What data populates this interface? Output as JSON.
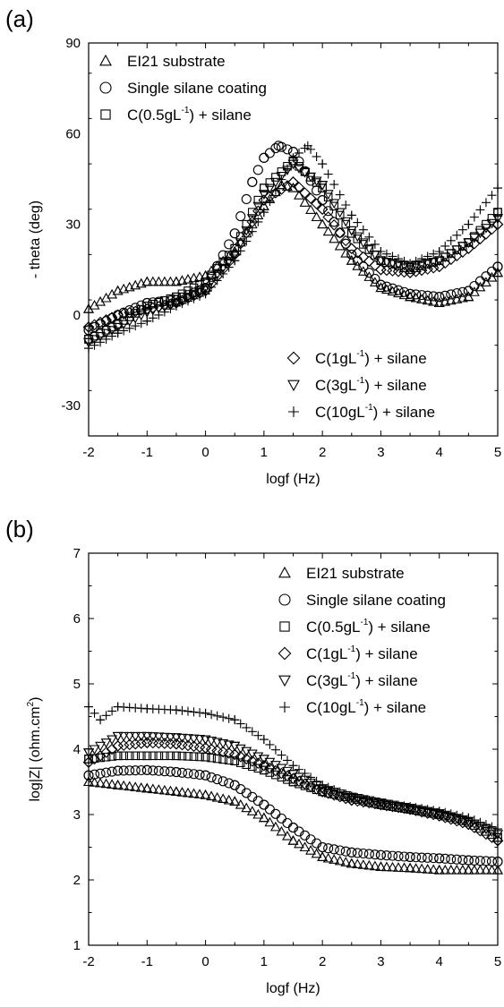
{
  "chart_data": [
    {
      "panel": "(a)",
      "type": "scatter",
      "xlabel": "logf (Hz)",
      "ylabel": "- theta (deg)",
      "xlim": [
        -2,
        5
      ],
      "ylim": [
        -40,
        90
      ],
      "xticks": [
        "-2",
        "-1",
        "0",
        "1",
        "2",
        "3",
        "4",
        "5"
      ],
      "yticks": [
        "-30",
        "0",
        "30",
        "60",
        "90"
      ],
      "legend_groups": [
        {
          "position": "top-left",
          "entries": [
            {
              "marker": "triangle",
              "pre": "EI21 substrate",
              "sup": "",
              "post": ""
            },
            {
              "marker": "circle",
              "pre": "Single silane coating",
              "sup": "",
              "post": ""
            },
            {
              "marker": "square",
              "pre": "C(0.5gL",
              "sup": "-1",
              "post": ") + silane"
            }
          ]
        },
        {
          "position": "bottom-right",
          "entries": [
            {
              "marker": "diamond",
              "pre": "C(1gL",
              "sup": "-1",
              "post": ") + silane"
            },
            {
              "marker": "triangle-down",
              "pre": "C(3gL",
              "sup": "-1",
              "post": ") + silane"
            },
            {
              "marker": "plus",
              "pre": "C(10gL",
              "sup": "-1",
              "post": ") + silane"
            }
          ]
        }
      ],
      "series": [
        {
          "name": "EI21 substrate",
          "marker": "triangle",
          "x": [
            -2,
            -1.5,
            -1,
            -0.5,
            0,
            0.5,
            1,
            1.3,
            1.5,
            2,
            2.5,
            3,
            3.5,
            4,
            4.5,
            5
          ],
          "y": [
            2,
            8,
            11,
            11,
            13,
            21,
            36,
            43,
            42,
            30,
            18,
            9,
            6,
            4,
            6,
            14
          ]
        },
        {
          "name": "Single silane coating",
          "marker": "circle",
          "x": [
            -2,
            -1.5,
            -1,
            -0.5,
            0,
            0.5,
            0.8,
            1,
            1.25,
            1.5,
            2,
            2.5,
            3,
            3.5,
            4,
            4.5,
            5
          ],
          "y": [
            -5,
            0,
            4,
            5,
            9,
            27,
            44,
            52,
            56,
            54,
            38,
            20,
            10,
            7,
            6,
            8,
            16
          ]
        },
        {
          "name": "C(0.5gL-1) + silane",
          "marker": "square",
          "x": [
            -2,
            -1.5,
            -1,
            -0.5,
            0,
            0.5,
            1,
            1.5,
            2,
            2.5,
            3,
            3.5,
            4,
            4.5,
            5
          ],
          "y": [
            -8,
            -3,
            3,
            6,
            11,
            22,
            42,
            51,
            42,
            27,
            18,
            15,
            18,
            24,
            34
          ]
        },
        {
          "name": "C(1gL-1) + silane",
          "marker": "diamond",
          "x": [
            -2,
            -1.5,
            -1,
            -0.5,
            0,
            0.5,
            1,
            1.5,
            2,
            2.5,
            3,
            3.5,
            4,
            4.5,
            5
          ],
          "y": [
            -4,
            0,
            2,
            4,
            8,
            20,
            38,
            44,
            35,
            22,
            15,
            14,
            16,
            22,
            30
          ]
        },
        {
          "name": "C(3gL-1) + silane",
          "marker": "triangle-down",
          "x": [
            -2,
            -1.5,
            -1,
            -0.5,
            0,
            0.5,
            1,
            1.5,
            2,
            2.5,
            3,
            3.5,
            4,
            4.5,
            5
          ],
          "y": [
            -9,
            -4,
            1,
            4,
            9,
            20,
            40,
            50,
            43,
            28,
            18,
            16,
            18,
            24,
            32
          ]
        },
        {
          "name": "C(10gL-1) + silane",
          "marker": "plus",
          "x": [
            -2,
            -1.5,
            -1,
            -0.5,
            0,
            0.5,
            1,
            1.5,
            1.75,
            2,
            2.5,
            3,
            3.5,
            4,
            4.5,
            5
          ],
          "y": [
            -11,
            -6,
            -2,
            3,
            7,
            18,
            34,
            52,
            56,
            50,
            33,
            21,
            17,
            21,
            30,
            42
          ]
        }
      ]
    },
    {
      "panel": "(b)",
      "type": "scatter",
      "xlabel": "logf (Hz)",
      "ylabel": "log|Z| (ohm.cm",
      "ylabel_sup": "2",
      "ylabel_post": ")",
      "xlim": [
        -2,
        5
      ],
      "ylim": [
        1,
        7
      ],
      "xticks": [
        "-2",
        "-1",
        "0",
        "1",
        "2",
        "3",
        "4",
        "5"
      ],
      "yticks": [
        "1",
        "2",
        "3",
        "4",
        "5",
        "6",
        "7"
      ],
      "legend_groups": [
        {
          "position": "top-right",
          "entries": [
            {
              "marker": "triangle",
              "pre": "EI21 substrate",
              "sup": "",
              "post": ""
            },
            {
              "marker": "circle",
              "pre": "Single silane coating",
              "sup": "",
              "post": ""
            },
            {
              "marker": "square",
              "pre": "C(0.5gL",
              "sup": "-1",
              "post": ") + silane"
            },
            {
              "marker": "diamond",
              "pre": "C(1gL",
              "sup": "-1",
              "post": ") + silane"
            },
            {
              "marker": "triangle-down",
              "pre": "C(3gL",
              "sup": "-1",
              "post": ") + silane"
            },
            {
              "marker": "plus",
              "pre": "C(10gL",
              "sup": "-1",
              "post": ") + silane"
            }
          ]
        }
      ],
      "series": [
        {
          "name": "EI21 substrate",
          "marker": "triangle",
          "x": [
            -2,
            -1.5,
            -1,
            -0.5,
            0,
            0.5,
            1,
            1.5,
            2,
            2.5,
            3,
            3.5,
            4,
            4.5,
            5
          ],
          "y": [
            3.5,
            3.45,
            3.4,
            3.35,
            3.3,
            3.2,
            2.95,
            2.6,
            2.35,
            2.25,
            2.2,
            2.18,
            2.15,
            2.15,
            2.15
          ]
        },
        {
          "name": "Single silane coating",
          "marker": "circle",
          "x": [
            -2,
            -1.5,
            -1,
            -0.5,
            0,
            0.5,
            1,
            1.5,
            2,
            2.5,
            3,
            3.5,
            4,
            4.5,
            5
          ],
          "y": [
            3.6,
            3.67,
            3.68,
            3.65,
            3.6,
            3.45,
            3.15,
            2.8,
            2.5,
            2.42,
            2.38,
            2.35,
            2.33,
            2.3,
            2.28
          ]
        },
        {
          "name": "C(0.5gL-1) + silane",
          "marker": "square",
          "x": [
            -2,
            -1.5,
            -1,
            -0.5,
            0,
            0.5,
            1,
            1.5,
            2,
            2.5,
            3,
            3.5,
            4,
            4.5,
            5
          ],
          "y": [
            3.85,
            3.9,
            3.9,
            3.9,
            3.88,
            3.82,
            3.68,
            3.5,
            3.35,
            3.25,
            3.15,
            3.08,
            3.0,
            2.88,
            2.65
          ]
        },
        {
          "name": "C(1gL-1) + silane",
          "marker": "diamond",
          "x": [
            -2,
            -1.5,
            -1,
            -0.5,
            0,
            0.5,
            1,
            1.5,
            2,
            2.5,
            3,
            3.5,
            4,
            4.5,
            5
          ],
          "y": [
            3.8,
            4.05,
            4.1,
            4.08,
            4.02,
            3.92,
            3.75,
            3.55,
            3.35,
            3.22,
            3.15,
            3.08,
            2.98,
            2.85,
            2.6
          ]
        },
        {
          "name": "C(3gL-1) + silane",
          "marker": "triangle-down",
          "x": [
            -2,
            -1.5,
            -1,
            -0.5,
            0,
            0.5,
            1,
            1.5,
            2,
            2.5,
            3,
            3.5,
            4,
            4.5,
            5
          ],
          "y": [
            3.95,
            4.2,
            4.2,
            4.18,
            4.15,
            4.05,
            3.85,
            3.62,
            3.4,
            3.27,
            3.18,
            3.1,
            3.02,
            2.9,
            2.7
          ]
        },
        {
          "name": "C(10gL-1) + silane",
          "marker": "plus",
          "x": [
            -2,
            -1.8,
            -1.5,
            -1,
            -0.5,
            0,
            0.5,
            1,
            1.5,
            2,
            2.5,
            3,
            3.5,
            4,
            4.5,
            5
          ],
          "y": [
            4.65,
            4.45,
            4.65,
            4.62,
            4.6,
            4.55,
            4.45,
            4.15,
            3.75,
            3.45,
            3.28,
            3.18,
            3.12,
            3.05,
            2.95,
            2.78
          ]
        }
      ]
    }
  ]
}
